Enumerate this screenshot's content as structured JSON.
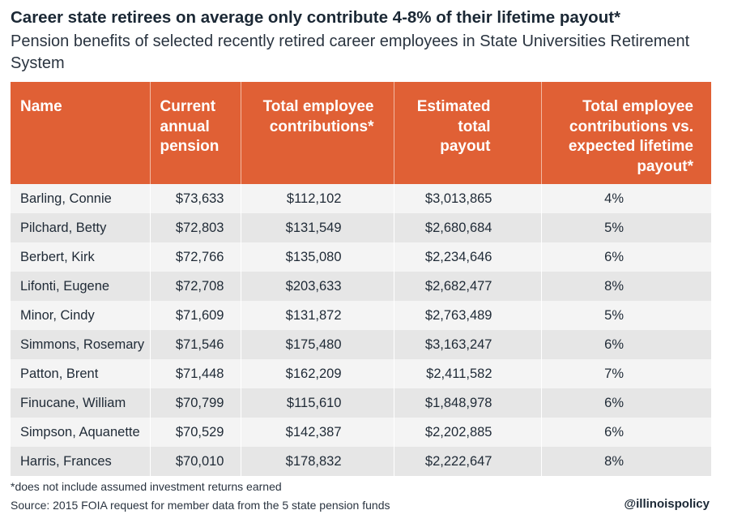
{
  "title": "Career state retirees on average only contribute 4-8% of their lifetime payout*",
  "subtitle": "Pension benefits of selected recently retired career employees in State Universities Retirement System",
  "chart_data": {
    "type": "table",
    "columns": [
      "Name",
      "Current annual pension",
      "Total employee contributions*",
      "Estimated total payout",
      "Total employee contributions vs. expected lifetime payout*"
    ],
    "rows": [
      [
        "Barling, Connie",
        "$73,633",
        "$112,102",
        "$3,013,865",
        "4%"
      ],
      [
        "Pilchard, Betty",
        "$72,803",
        "$131,549",
        "$2,680,684",
        "5%"
      ],
      [
        "Berbert, Kirk",
        "$72,766",
        "$135,080",
        "$2,234,646",
        "6%"
      ],
      [
        "Lifonti, Eugene",
        "$72,708",
        "$203,633",
        "$2,682,477",
        "8%"
      ],
      [
        "Minor, Cindy",
        "$71,609",
        "$131,872",
        "$2,763,489",
        "5%"
      ],
      [
        "Simmons, Rosemary",
        "$71,546",
        "$175,480",
        "$3,163,247",
        "6%"
      ],
      [
        "Patton, Brent",
        "$71,448",
        "$162,209",
        "$2,411,582",
        "7%"
      ],
      [
        "Finucane, William",
        "$70,799",
        "$115,610",
        "$1,848,978",
        "6%"
      ],
      [
        "Simpson, Aquanette",
        "$70,529",
        "$142,387",
        "$2,202,885",
        "6%"
      ],
      [
        "Harris, Frances",
        "$70,010",
        "$178,832",
        "$2,222,647",
        "8%"
      ]
    ]
  },
  "footnote": "*does not include assumed investment returns earned",
  "source": "Source: 2015 FOIA request for member data from the 5 state pension funds",
  "brand": "@illinoispolicy",
  "colors": {
    "header_bg": "#e06035",
    "row_light": "#f4f4f4",
    "row_dark": "#e6e6e6"
  }
}
